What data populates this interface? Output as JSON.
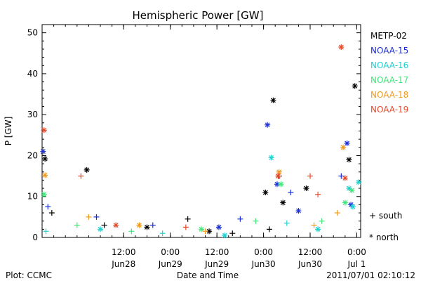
{
  "chart_data": {
    "type": "scatter",
    "title": "Hemispheric Power [GW]",
    "ylabel": "P [GW]",
    "xlabel": "Date and Time",
    "ylim": [
      0,
      52
    ],
    "xlim": [
      "2011-06-27T15:00",
      "2011-07-01T01:00"
    ],
    "yticks": [
      "0",
      "10",
      "20",
      "30",
      "40",
      "50"
    ],
    "xticks": [
      {
        "line1": "12:00",
        "line2": "Jun28",
        "t": "2011-06-28T12:00"
      },
      {
        "line1": "0:00",
        "line2": "Jun29",
        "t": "2011-06-29T00:00"
      },
      {
        "line1": "12:00",
        "line2": "Jun29",
        "t": "2011-06-29T12:00"
      },
      {
        "line1": "0:00",
        "line2": "Jun30",
        "t": "2011-06-30T00:00"
      },
      {
        "line1": "12:00",
        "line2": "Jun30",
        "t": "2011-06-30T12:00"
      },
      {
        "line1": "0:00",
        "line2": "Jul 1",
        "t": "2011-07-01T00:00"
      }
    ],
    "legend_position": "right",
    "marker_legend": [
      {
        "symbol": "+",
        "label": "south"
      },
      {
        "symbol": "*",
        "label": "north"
      }
    ],
    "series": [
      {
        "name": "METP-02",
        "color": "#000000",
        "points": [
          {
            "t": "2011-06-27T15:45",
            "y": 19.2,
            "m": "*"
          },
          {
            "t": "2011-06-27T17:30",
            "y": 6.0,
            "m": "+"
          },
          {
            "t": "2011-06-28T02:30",
            "y": 16.5,
            "m": "*"
          },
          {
            "t": "2011-06-28T07:00",
            "y": 3.0,
            "m": "+"
          },
          {
            "t": "2011-06-28T18:00",
            "y": 2.5,
            "m": "*"
          },
          {
            "t": "2011-06-29T04:30",
            "y": 4.5,
            "m": "+"
          },
          {
            "t": "2011-06-29T10:00",
            "y": 1.5,
            "m": "*"
          },
          {
            "t": "2011-06-29T16:00",
            "y": 1.0,
            "m": "+"
          },
          {
            "t": "2011-06-30T00:30",
            "y": 11.0,
            "m": "*"
          },
          {
            "t": "2011-06-30T01:30",
            "y": 2.0,
            "m": "+"
          },
          {
            "t": "2011-06-30T02:30",
            "y": 33.5,
            "m": "*"
          },
          {
            "t": "2011-06-30T04:00",
            "y": 15.0,
            "m": "+"
          },
          {
            "t": "2011-06-30T05:00",
            "y": 8.5,
            "m": "*"
          },
          {
            "t": "2011-06-30T11:00",
            "y": 12.0,
            "m": "*"
          },
          {
            "t": "2011-06-30T22:00",
            "y": 19.0,
            "m": "*"
          },
          {
            "t": "2011-06-30T23:30",
            "y": 37.0,
            "m": "*"
          }
        ]
      },
      {
        "name": "NOAA-15",
        "color": "#1a2ed6",
        "points": [
          {
            "t": "2011-06-27T15:15",
            "y": 21.0,
            "m": "*"
          },
          {
            "t": "2011-06-27T16:30",
            "y": 7.5,
            "m": "+"
          },
          {
            "t": "2011-06-28T05:00",
            "y": 5.0,
            "m": "+"
          },
          {
            "t": "2011-06-28T19:30",
            "y": 3.0,
            "m": "+"
          },
          {
            "t": "2011-06-29T12:30",
            "y": 2.5,
            "m": "*"
          },
          {
            "t": "2011-06-29T18:00",
            "y": 4.5,
            "m": "+"
          },
          {
            "t": "2011-06-30T01:00",
            "y": 27.5,
            "m": "*"
          },
          {
            "t": "2011-06-30T03:30",
            "y": 13.0,
            "m": "*"
          },
          {
            "t": "2011-06-30T07:00",
            "y": 11.0,
            "m": "+"
          },
          {
            "t": "2011-06-30T09:00",
            "y": 6.5,
            "m": "*"
          },
          {
            "t": "2011-06-30T20:00",
            "y": 15.0,
            "m": "+"
          },
          {
            "t": "2011-06-30T21:30",
            "y": 23.0,
            "m": "*"
          },
          {
            "t": "2011-06-30T22:30",
            "y": 8.0,
            "m": "*"
          }
        ]
      },
      {
        "name": "NOAA-16",
        "color": "#1ed2d2",
        "points": [
          {
            "t": "2011-06-27T16:00",
            "y": 1.5,
            "m": "+"
          },
          {
            "t": "2011-06-28T06:00",
            "y": 2.0,
            "m": "*"
          },
          {
            "t": "2011-06-28T22:00",
            "y": 1.0,
            "m": "+"
          },
          {
            "t": "2011-06-29T14:00",
            "y": 0.5,
            "m": "*"
          },
          {
            "t": "2011-06-30T02:00",
            "y": 19.5,
            "m": "*"
          },
          {
            "t": "2011-06-30T06:00",
            "y": 3.5,
            "m": "+"
          },
          {
            "t": "2011-06-30T14:00",
            "y": 2.0,
            "m": "*"
          },
          {
            "t": "2011-06-30T22:00",
            "y": 12.0,
            "m": "*"
          },
          {
            "t": "2011-07-01T00:30",
            "y": 13.5,
            "m": "*"
          },
          {
            "t": "2011-06-30T23:00",
            "y": 7.5,
            "m": "*"
          }
        ]
      },
      {
        "name": "NOAA-17",
        "color": "#3ee87a",
        "points": [
          {
            "t": "2011-06-27T15:30",
            "y": 10.5,
            "m": "*"
          },
          {
            "t": "2011-06-28T00:00",
            "y": 3.0,
            "m": "+"
          },
          {
            "t": "2011-06-28T14:00",
            "y": 1.5,
            "m": "+"
          },
          {
            "t": "2011-06-29T08:00",
            "y": 2.0,
            "m": "*"
          },
          {
            "t": "2011-06-29T22:00",
            "y": 4.0,
            "m": "+"
          },
          {
            "t": "2011-06-30T04:30",
            "y": 13.0,
            "m": "*"
          },
          {
            "t": "2011-06-30T15:00",
            "y": 4.0,
            "m": "+"
          },
          {
            "t": "2011-06-30T21:00",
            "y": 8.5,
            "m": "*"
          },
          {
            "t": "2011-06-30T22:45",
            "y": 11.5,
            "m": "*"
          }
        ]
      },
      {
        "name": "NOAA-18",
        "color": "#f09a1e",
        "points": [
          {
            "t": "2011-06-27T15:45",
            "y": 15.2,
            "m": "*"
          },
          {
            "t": "2011-06-28T03:00",
            "y": 5.0,
            "m": "+"
          },
          {
            "t": "2011-06-28T16:00",
            "y": 3.0,
            "m": "*"
          },
          {
            "t": "2011-06-29T09:00",
            "y": 1.5,
            "m": "+"
          },
          {
            "t": "2011-06-30T04:00",
            "y": 16.0,
            "m": "*"
          },
          {
            "t": "2011-06-30T13:00",
            "y": 3.0,
            "m": "+"
          },
          {
            "t": "2011-06-30T20:30",
            "y": 22.0,
            "m": "*"
          },
          {
            "t": "2011-06-30T19:00",
            "y": 6.0,
            "m": "+"
          }
        ]
      },
      {
        "name": "NOAA-19",
        "color": "#e8482a",
        "points": [
          {
            "t": "2011-06-27T15:30",
            "y": 26.2,
            "m": "*"
          },
          {
            "t": "2011-06-28T01:00",
            "y": 15.0,
            "m": "+"
          },
          {
            "t": "2011-06-28T10:00",
            "y": 3.0,
            "m": "*"
          },
          {
            "t": "2011-06-29T04:00",
            "y": 2.5,
            "m": "+"
          },
          {
            "t": "2011-06-30T03:45",
            "y": 15.0,
            "m": "*"
          },
          {
            "t": "2011-06-30T12:00",
            "y": 15.0,
            "m": "+"
          },
          {
            "t": "2011-06-30T14:00",
            "y": 10.5,
            "m": "+"
          },
          {
            "t": "2011-06-30T20:00",
            "y": 46.5,
            "m": "*"
          },
          {
            "t": "2011-06-30T21:00",
            "y": 14.5,
            "m": "*"
          }
        ]
      }
    ]
  },
  "footer": {
    "left": "Plot: CCMC",
    "right": "2011/07/01 02:10:12"
  }
}
